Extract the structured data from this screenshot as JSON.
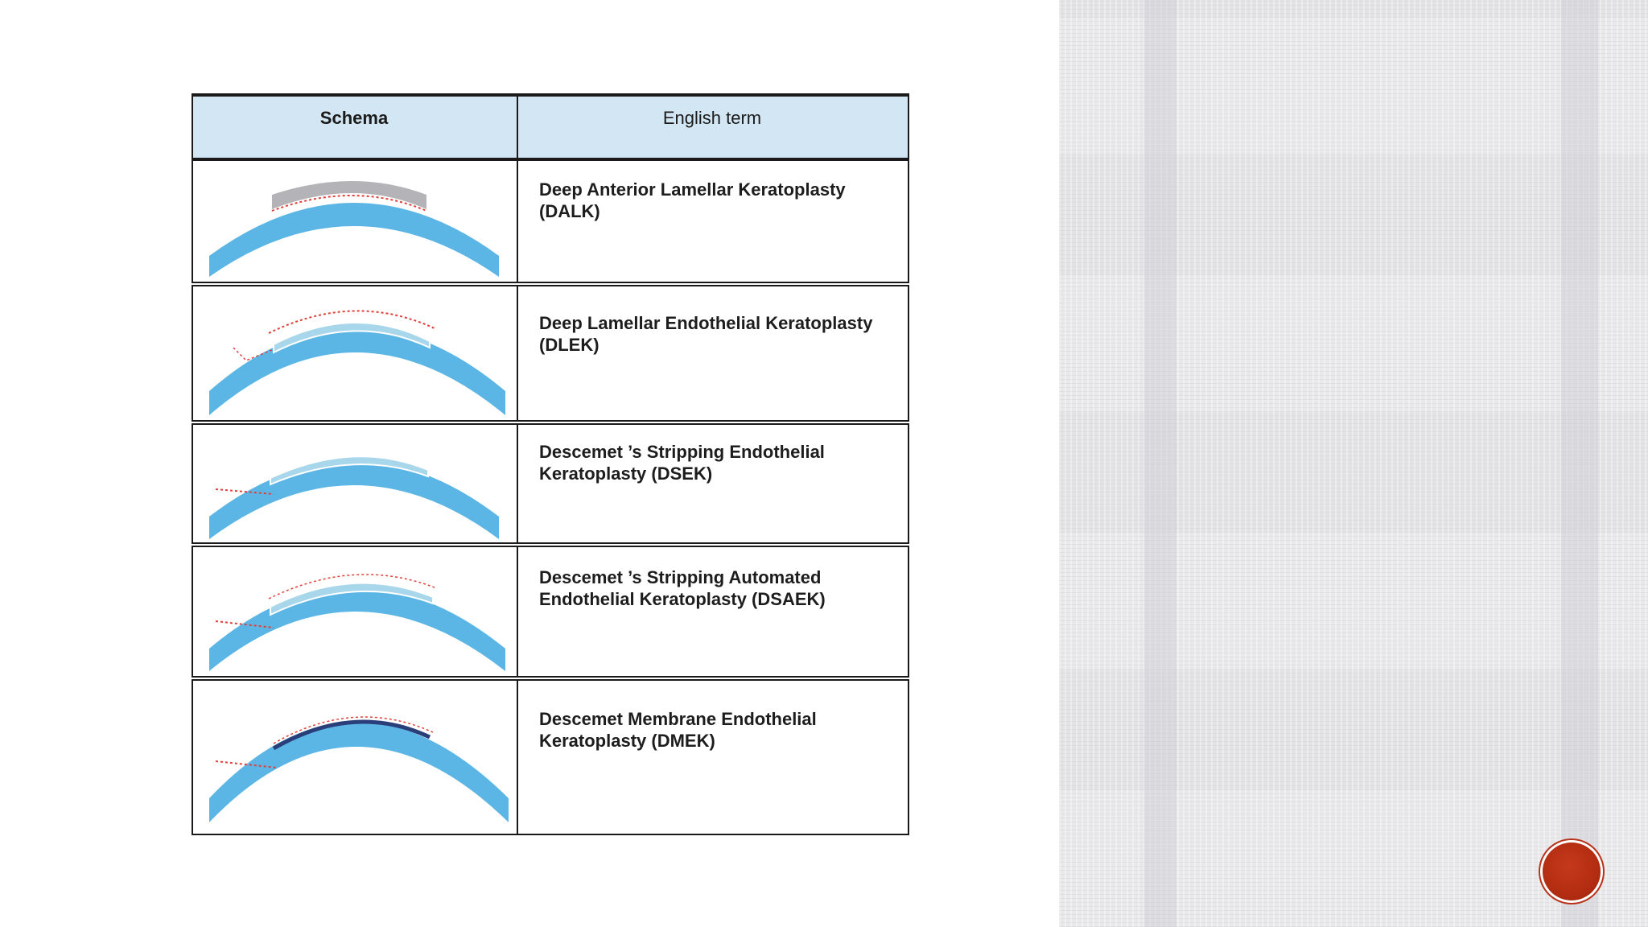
{
  "table": {
    "headers": {
      "schema": "Schema",
      "term": "English term"
    },
    "rows": [
      {
        "term": "Deep Anterior Lamellar Keratoplasty (DALK)"
      },
      {
        "term": "Deep Lamellar Endothelial Keratoplasty (DLEK)"
      },
      {
        "term": "Descemet ’s Stripping Endothelial Keratoplasty (DSEK)"
      },
      {
        "term": "Descemet ’s Stripping Automated Endothelial Keratoplasty (DSAEK)"
      },
      {
        "term": "Descemet Membrane Endothelial Keratoplasty (DMEK)"
      }
    ]
  },
  "colors": {
    "cornea": "#5bb6e6",
    "graft_gray": "#b4b4b8",
    "graft_light": "#a8d6ea",
    "graft_dark": "#2a3f7a",
    "incision_red": "#e0403a",
    "header_bg": "#d3e6f3",
    "panel_bg": "#e3e3e5",
    "button_red": "#b32d12"
  },
  "icons": {
    "next": "next-slide-button"
  }
}
